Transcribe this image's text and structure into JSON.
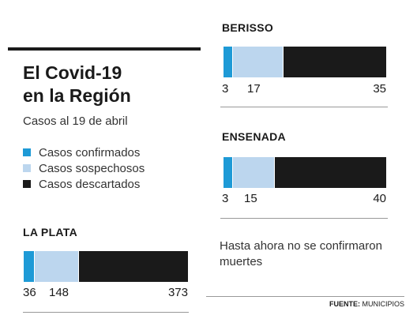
{
  "header": {
    "title_line1": "El Covid-19",
    "title_line2": "en la Región",
    "subtitle": "Casos al 19 de abril"
  },
  "legend": [
    {
      "label": "Casos confirmados",
      "color": "#1e9ad6"
    },
    {
      "label": "Casos sospechosos",
      "color": "#bcd6ee"
    },
    {
      "label": "Casos descartados",
      "color": "#1a1a1a"
    }
  ],
  "note": "Hasta ahora no se confirmaron muertes",
  "source": {
    "label": "FUENTE:",
    "value": "MUNICIPIOS"
  },
  "chart_data": [
    {
      "type": "bar",
      "title": "LA PLATA",
      "categories": [
        "Casos confirmados",
        "Casos sospechosos",
        "Casos descartados"
      ],
      "values": [
        36,
        148,
        373
      ],
      "labels": [
        "36",
        "148",
        "373"
      ]
    },
    {
      "type": "bar",
      "title": "BERISSO",
      "categories": [
        "Casos confirmados",
        "Casos sospechosos",
        "Casos descartados"
      ],
      "values": [
        3,
        17,
        35
      ],
      "labels": [
        "3",
        "17",
        "35"
      ]
    },
    {
      "type": "bar",
      "title": "ENSENADA",
      "categories": [
        "Casos confirmados",
        "Casos sospechosos",
        "Casos descartados"
      ],
      "values": [
        3,
        15,
        40
      ],
      "labels": [
        "3",
        "15",
        "40"
      ]
    }
  ]
}
